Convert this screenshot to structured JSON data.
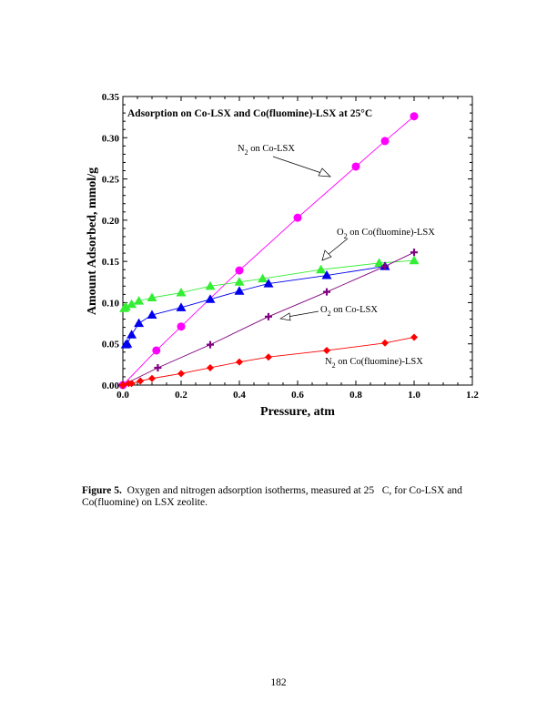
{
  "chart_data": {
    "type": "scatter",
    "title": "Adsorption on Co-LSX and  Co(fluomine)-LSX at 25°C",
    "xlabel": "Pressure, atm",
    "ylabel": "Amount Adsorbed, mmol/g",
    "xlim": [
      0,
      1.2
    ],
    "ylim": [
      0,
      0.35
    ],
    "xticks": [
      "0.0",
      "0.2",
      "0.4",
      "0.6",
      "0.8",
      "1.0",
      "1.2"
    ],
    "yticks": [
      "0.00",
      "0.05",
      "0.10",
      "0.15",
      "0.20",
      "0.25",
      "0.30",
      "0.35"
    ],
    "grid": false,
    "series": [
      {
        "name": "N2 on Co-LSX",
        "marker": "circle",
        "color": "#ff00ff",
        "x": [
          0,
          0.115,
          0.2,
          0.4,
          0.6,
          0.8,
          0.9,
          1.0
        ],
        "y": [
          0,
          0.042,
          0.071,
          0.139,
          0.203,
          0.265,
          0.296,
          0.326
        ]
      },
      {
        "name": "O2 on Co(fluomine)-LSX",
        "marker": "triangle",
        "color": "#33ee33",
        "x": [
          0.005,
          0.01,
          0.03,
          0.055,
          0.1,
          0.2,
          0.3,
          0.4,
          0.48,
          0.68,
          0.88,
          1.0
        ],
        "y": [
          0.093,
          0.095,
          0.098,
          0.102,
          0.106,
          0.112,
          0.12,
          0.125,
          0.129,
          0.14,
          0.148,
          0.151
        ]
      },
      {
        "name": "O2 on Co-LSX (triangles)",
        "marker": "triangle",
        "color": "#0000ee",
        "x": [
          0.01,
          0.015,
          0.03,
          0.055,
          0.1,
          0.2,
          0.3,
          0.4,
          0.5,
          0.7,
          0.9
        ],
        "y": [
          0.049,
          0.05,
          0.061,
          0.075,
          0.085,
          0.094,
          0.104,
          0.114,
          0.123,
          0.133,
          0.144
        ]
      },
      {
        "name": "O2 on Co-LSX",
        "marker": "plus",
        "color": "#800080",
        "x": [
          0,
          0.12,
          0.3,
          0.5,
          0.7,
          0.9,
          1.0
        ],
        "y": [
          0,
          0.021,
          0.049,
          0.083,
          0.113,
          0.144,
          0.161
        ]
      },
      {
        "name": "N2 on Co(fluomine)-LSX",
        "marker": "diamond",
        "color": "#ff0000",
        "x": [
          0,
          0.02,
          0.03,
          0.06,
          0.1,
          0.2,
          0.3,
          0.4,
          0.5,
          0.7,
          0.9,
          1.0
        ],
        "y": [
          0,
          0.002,
          0.002,
          0.005,
          0.008,
          0.014,
          0.021,
          0.028,
          0.034,
          0.042,
          0.051,
          0.058
        ]
      }
    ],
    "annotations": [
      {
        "gas": "N",
        "sub": "2",
        "rest": " on Co-LSX"
      },
      {
        "gas": "O",
        "sub": "2",
        "rest": " on Co(fluomine)-LSX"
      },
      {
        "gas": "O",
        "sub": "2",
        "rest": " on Co-LSX"
      },
      {
        "gas": "N",
        "sub": "2",
        "rest": " on Co(fluomine)-LSX"
      }
    ]
  },
  "caption": {
    "label": "Figure 5.",
    "text": "  Oxygen and nitrogen adsorption isotherms, measured at 25   C, for Co-LSX and Co(fluomine) on LSX zeolite."
  },
  "page_number": "182"
}
